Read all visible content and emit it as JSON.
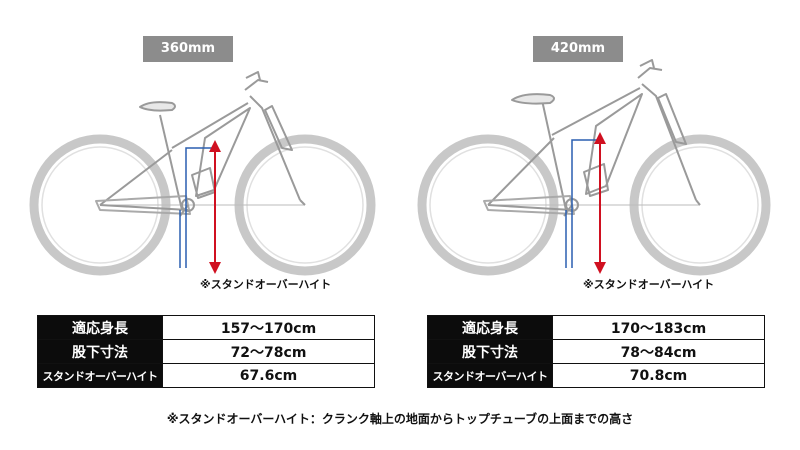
{
  "panels": [
    {
      "size_label": "360mm",
      "note_label": "※スタンドオーバーハイト",
      "rows": [
        {
          "key": "適応身長",
          "value": "157〜170cm"
        },
        {
          "key": "股下寸法",
          "value": "72〜78cm"
        },
        {
          "key": "スタンドオーバーハイト",
          "value": "67.6cm"
        }
      ]
    },
    {
      "size_label": "420mm",
      "note_label": "※スタンドオーバーハイト",
      "rows": [
        {
          "key": "適応身長",
          "value": "170〜183cm"
        },
        {
          "key": "股下寸法",
          "value": "78〜84cm"
        },
        {
          "key": "スタンドオーバーハイト",
          "value": "70.8cm"
        }
      ]
    }
  ],
  "footnote": "※スタンドオーバーハイト：クランク軸上の地面からトップチューブの上面までの高さ",
  "colors": {
    "arrow": "#d01020",
    "guide": "#2a5fb0",
    "badge": "#8c8c8c",
    "frame": "#9a9a9a",
    "tire": "#c8c8c8"
  }
}
